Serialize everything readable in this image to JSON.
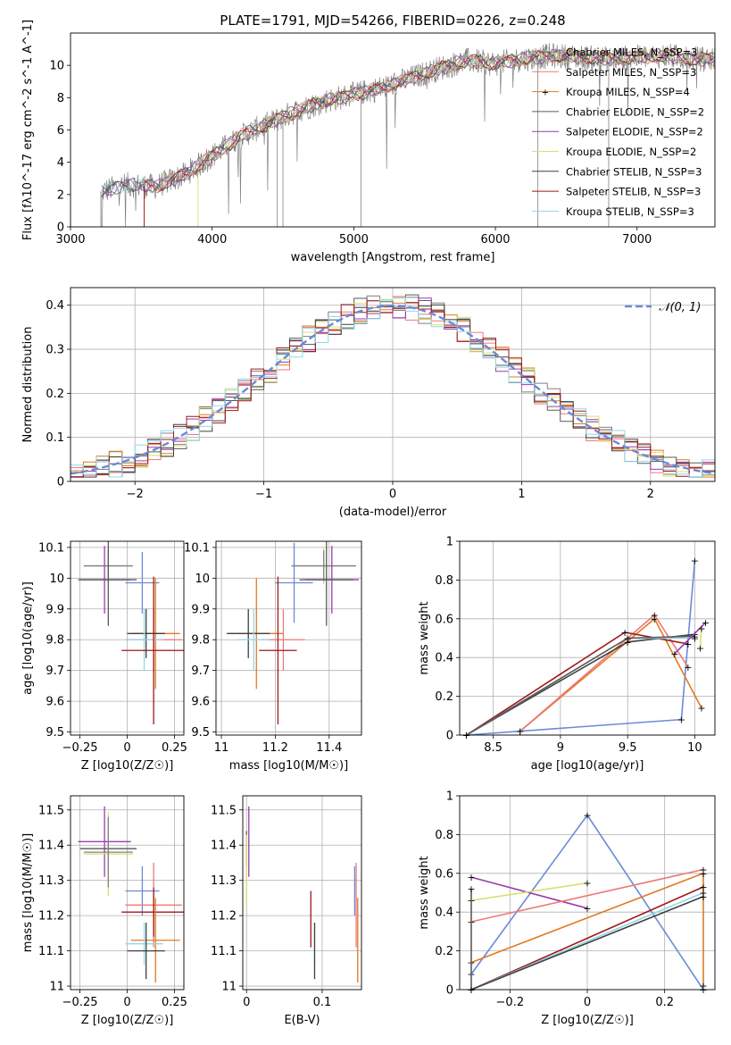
{
  "figure": {
    "title": "PLATE=1791, MJD=54266, FIBERID=0226, z=0.248"
  },
  "legend_colors": [
    "#808080",
    "#f07878",
    "#e07b22",
    "#5a5a5a",
    "#9a3cb0",
    "#d8e070",
    "#404040",
    "#a01818",
    "#90d8e8"
  ],
  "panel_a_legend_lines": [
    "#808080",
    "#f07878",
    "#e07b22",
    "#5a5a5a",
    "#9a3cb0",
    "#d8e070",
    "#404040",
    "#a01818",
    "#90d8e8"
  ],
  "chart_data": [
    {
      "id": "spectrum",
      "type": "line",
      "xlabel": "wavelength [Angstrom, rest frame]",
      "ylabel": "Flux [fλ10^-17 erg cm^-2 s^-1 A^-1]",
      "xlim": [
        3000,
        7550
      ],
      "ylim": [
        0,
        12
      ],
      "xticks": [
        3000,
        4000,
        5000,
        6000,
        7000
      ],
      "yticks": [
        0,
        2,
        4,
        6,
        8,
        10
      ],
      "grid": false,
      "legend_position": "right",
      "series": [
        {
          "name": "Chabrier MILES, N_SSP=3",
          "color": "#808080"
        },
        {
          "name": "Salpeter MILES, N_SSP=3",
          "color": "#f07878"
        },
        {
          "name": "Kroupa MILES, N_SSP=4",
          "color": "#e07b22"
        },
        {
          "name": "Chabrier ELODIE, N_SSP=2",
          "color": "#5a5a5a"
        },
        {
          "name": "Salpeter ELODIE, N_SSP=2",
          "color": "#9a3cb0"
        },
        {
          "name": "Kroupa ELODIE, N_SSP=2",
          "color": "#d8e070"
        },
        {
          "name": "Chabrier STELIB, N_SSP=3",
          "color": "#404040"
        },
        {
          "name": "Salpeter STELIB, N_SSP=3",
          "color": "#a01818"
        },
        {
          "name": "Kroupa STELIB, N_SSP=3",
          "color": "#90d8e8"
        }
      ],
      "data_envelope": {
        "x": [
          3220,
          3400,
          3600,
          3800,
          4000,
          4200,
          4400,
          4600,
          4800,
          5000,
          5200,
          5400,
          5600,
          5800,
          6000,
          6200,
          6400,
          6600,
          6800,
          7000,
          7200,
          7400
        ],
        "y": [
          2.2,
          2.6,
          2.5,
          3.2,
          4.4,
          5.6,
          6.4,
          7.2,
          7.8,
          8.2,
          8.6,
          9.2,
          9.8,
          10.3,
          10.1,
          10.4,
          10.6,
          10.5,
          10.4,
          10.5,
          10.6,
          10.4
        ]
      }
    },
    {
      "id": "residuals",
      "type": "histogram",
      "xlabel": "(data-model)/error",
      "ylabel": "Normed distribution",
      "xlim": [
        -2.5,
        2.5
      ],
      "ylim": [
        0,
        0.44
      ],
      "xticks": [
        -2,
        -1,
        0,
        1,
        2
      ],
      "yticks": [
        0.0,
        0.1,
        0.2,
        0.3,
        0.4
      ],
      "grid": true,
      "legend_position": "top-right",
      "legend_label": "𝒩(0, 1)",
      "reference_curve": "gaussian mean 0 sigma 1"
    },
    {
      "id": "age_vs_Z",
      "type": "errorbar",
      "xlabel": "Z [log10(Z/Z☉)]",
      "ylabel": "age [log10(age/yr)]",
      "xlim": [
        -0.3,
        0.3
      ],
      "ylim": [
        9.49,
        10.12
      ],
      "xticks": [
        -0.25,
        0.0,
        0.25
      ],
      "yticks": [
        9.5,
        9.6,
        9.7,
        9.8,
        9.9,
        10.0,
        10.1
      ],
      "grid": true,
      "points": [
        {
          "color": "#d8e070",
          "x": -0.1,
          "xerr": 0.13,
          "y": 10.04,
          "yerr": 0.06
        },
        {
          "color": "#808080",
          "x": -0.1,
          "xerr": 0.13,
          "y": 10.04,
          "yerr": 0.05
        },
        {
          "color": "#9a3cb0",
          "x": -0.12,
          "xerr": 0.14,
          "y": 9.995,
          "yerr": 0.11
        },
        {
          "color": "#5a5a5a",
          "x": -0.1,
          "xerr": 0.15,
          "y": 9.995,
          "yerr": 0.15
        },
        {
          "color": "#6a8ad8",
          "x": 0.08,
          "xerr": 0.09,
          "y": 9.985,
          "yerr": 0.1
        },
        {
          "color": "#f07878",
          "x": 0.14,
          "xerr": 0.15,
          "y": 9.8,
          "yerr": 0.1
        },
        {
          "color": "#e07b22",
          "x": 0.15,
          "xerr": 0.13,
          "y": 9.82,
          "yerr": 0.18
        },
        {
          "color": "#404040",
          "x": 0.1,
          "xerr": 0.1,
          "y": 9.82,
          "yerr": 0.08
        },
        {
          "color": "#90d8e8",
          "x": 0.09,
          "xerr": 0.1,
          "y": 9.8,
          "yerr": 0.1
        },
        {
          "color": "#a01818",
          "x": 0.14,
          "xerr": 0.17,
          "y": 9.765,
          "yerr": 0.24
        }
      ]
    },
    {
      "id": "age_vs_mass",
      "type": "errorbar",
      "xlabel": "mass [log10(M/M☉)]",
      "ylabel": "",
      "xlim": [
        10.98,
        11.52
      ],
      "ylim": [
        9.49,
        10.12
      ],
      "xticks": [
        11.0,
        11.2,
        11.4
      ],
      "yticks": [
        9.5,
        9.6,
        9.7,
        9.8,
        9.9,
        10.0,
        10.1
      ],
      "grid": true,
      "points": [
        {
          "color": "#d8e070",
          "x": 11.38,
          "xerr": 0.12,
          "y": 10.04,
          "yerr": 0.06
        },
        {
          "color": "#808080",
          "x": 11.38,
          "xerr": 0.12,
          "y": 10.04,
          "yerr": 0.05
        },
        {
          "color": "#9a3cb0",
          "x": 11.41,
          "xerr": 0.1,
          "y": 9.995,
          "yerr": 0.11
        },
        {
          "color": "#5a5a5a",
          "x": 11.39,
          "xerr": 0.1,
          "y": 9.995,
          "yerr": 0.15
        },
        {
          "color": "#6a8ad8",
          "x": 11.27,
          "xerr": 0.07,
          "y": 9.985,
          "yerr": 0.13
        },
        {
          "color": "#f07878",
          "x": 11.23,
          "xerr": 0.08,
          "y": 9.8,
          "yerr": 0.1
        },
        {
          "color": "#e07b22",
          "x": 11.13,
          "xerr": 0.1,
          "y": 9.82,
          "yerr": 0.18
        },
        {
          "color": "#404040",
          "x": 11.1,
          "xerr": 0.08,
          "y": 9.82,
          "yerr": 0.08
        },
        {
          "color": "#90d8e8",
          "x": 11.12,
          "xerr": 0.06,
          "y": 9.8,
          "yerr": 0.1
        },
        {
          "color": "#a01818",
          "x": 11.21,
          "xerr": 0.07,
          "y": 9.765,
          "yerr": 0.24
        }
      ]
    },
    {
      "id": "weight_vs_age",
      "type": "line",
      "xlabel": "age [log10(age/yr)]",
      "ylabel": "mass weight",
      "xlim": [
        8.25,
        10.15
      ],
      "ylim": [
        0,
        1.0
      ],
      "xticks": [
        8.5,
        9.0,
        9.5,
        10.0
      ],
      "yticks": [
        0.0,
        0.2,
        0.4,
        0.6,
        0.8,
        1.0
      ],
      "grid": true,
      "series": [
        {
          "color": "#6a8ad8",
          "points": [
            [
              8.3,
              0.0
            ],
            [
              9.9,
              0.08
            ],
            [
              10.0,
              0.9
            ]
          ]
        },
        {
          "color": "#e07b22",
          "points": [
            [
              8.7,
              0.02
            ],
            [
              9.7,
              0.6
            ],
            [
              10.05,
              0.14
            ]
          ]
        },
        {
          "color": "#f07878",
          "points": [
            [
              8.7,
              0.02
            ],
            [
              9.7,
              0.62
            ],
            [
              9.95,
              0.35
            ]
          ]
        },
        {
          "color": "#a01818",
          "points": [
            [
              8.3,
              0.0
            ],
            [
              9.48,
              0.53
            ],
            [
              9.95,
              0.47
            ]
          ]
        },
        {
          "color": "#404040",
          "points": [
            [
              8.3,
              0.0
            ],
            [
              9.5,
              0.48
            ],
            [
              10.0,
              0.52
            ]
          ]
        },
        {
          "color": "#90d8e8",
          "points": [
            [
              8.3,
              0.0
            ],
            [
              9.5,
              0.5
            ],
            [
              10.0,
              0.5
            ]
          ]
        },
        {
          "color": "#5a5a5a",
          "points": [
            [
              8.3,
              0.0
            ],
            [
              9.5,
              0.5
            ],
            [
              10.0,
              0.51
            ]
          ]
        },
        {
          "color": "#9a3cb0",
          "points": [
            [
              9.85,
              0.42
            ],
            [
              10.08,
              0.58
            ]
          ]
        },
        {
          "color": "#d8e070",
          "points": [
            [
              10.04,
              0.45
            ],
            [
              10.05,
              0.55
            ]
          ]
        }
      ]
    },
    {
      "id": "mass_vs_Z",
      "type": "errorbar",
      "xlabel": "Z [log10(Z/Z☉)]",
      "ylabel": "mass [log10(M/M☉)]",
      "xlim": [
        -0.3,
        0.3
      ],
      "ylim": [
        10.99,
        11.54
      ],
      "xticks": [
        -0.25,
        0.0,
        0.25
      ],
      "yticks": [
        11.0,
        11.1,
        11.2,
        11.3,
        11.4,
        11.5
      ],
      "grid": true,
      "points": [
        {
          "color": "#9a3cb0",
          "x": -0.12,
          "xerr": 0.14,
          "y": 11.41,
          "yerr": 0.1
        },
        {
          "color": "#5a5a5a",
          "x": -0.1,
          "xerr": 0.15,
          "y": 11.39,
          "yerr": 0.05
        },
        {
          "color": "#d8e070",
          "x": -0.1,
          "xerr": 0.13,
          "y": 11.375,
          "yerr": 0.12
        },
        {
          "color": "#808080",
          "x": -0.1,
          "xerr": 0.13,
          "y": 11.38,
          "yerr": 0.1
        },
        {
          "color": "#6a8ad8",
          "x": 0.08,
          "xerr": 0.09,
          "y": 11.27,
          "yerr": 0.07
        },
        {
          "color": "#f07878",
          "x": 0.14,
          "xerr": 0.15,
          "y": 11.23,
          "yerr": 0.12
        },
        {
          "color": "#a01818",
          "x": 0.14,
          "xerr": 0.17,
          "y": 11.21,
          "yerr": 0.07
        },
        {
          "color": "#e07b22",
          "x": 0.15,
          "xerr": 0.13,
          "y": 11.13,
          "yerr": 0.12
        },
        {
          "color": "#90d8e8",
          "x": 0.09,
          "xerr": 0.1,
          "y": 11.12,
          "yerr": 0.06
        },
        {
          "color": "#404040",
          "x": 0.1,
          "xerr": 0.1,
          "y": 11.1,
          "yerr": 0.08
        }
      ]
    },
    {
      "id": "mass_vs_EBV",
      "type": "errorbar",
      "xlabel": "E(B-V)",
      "ylabel": "",
      "xlim": [
        -0.005,
        0.152
      ],
      "ylim": [
        10.99,
        11.54
      ],
      "xticks": [
        0.0,
        0.1
      ],
      "yticks": [
        11.0,
        11.1,
        11.2,
        11.3,
        11.4,
        11.5
      ],
      "grid": true,
      "points": [
        {
          "color": "#9a3cb0",
          "x": 0.003,
          "y": 11.41,
          "yerr": 0.1
        },
        {
          "color": "#5a5a5a",
          "x": 0.0,
          "y": 11.39,
          "yerr": 0.05
        },
        {
          "color": "#d8e070",
          "x": 0.0,
          "y": 11.33,
          "yerr": 0.1
        },
        {
          "color": "#6a8ad8",
          "x": 0.143,
          "y": 11.27,
          "yerr": 0.07
        },
        {
          "color": "#f07878",
          "x": 0.145,
          "y": 11.23,
          "yerr": 0.12
        },
        {
          "color": "#a01818",
          "x": 0.085,
          "y": 11.19,
          "yerr": 0.08
        },
        {
          "color": "#e07b22",
          "x": 0.147,
          "y": 11.13,
          "yerr": 0.12
        },
        {
          "color": "#90d8e8",
          "x": 0.09,
          "y": 11.12,
          "yerr": 0.06
        },
        {
          "color": "#404040",
          "x": 0.09,
          "y": 11.1,
          "yerr": 0.08
        }
      ]
    },
    {
      "id": "weight_vs_Z",
      "type": "line",
      "xlabel": "Z [log10(Z/Z☉)]",
      "ylabel": "mass weight",
      "xlim": [
        -0.33,
        0.33
      ],
      "ylim": [
        0,
        1.0
      ],
      "xticks": [
        -0.2,
        0.0,
        0.2
      ],
      "yticks": [
        0.0,
        0.2,
        0.4,
        0.6,
        0.8,
        1.0
      ],
      "grid": true,
      "series": [
        {
          "color": "#6a8ad8",
          "points": [
            [
              -0.3,
              0.08
            ],
            [
              0.0,
              0.9
            ],
            [
              0.3,
              0.0
            ]
          ]
        },
        {
          "color": "#9a3cb0",
          "points": [
            [
              -0.3,
              0.58
            ],
            [
              0.0,
              0.42
            ]
          ]
        },
        {
          "color": "#d8e070",
          "points": [
            [
              -0.3,
              0.46
            ],
            [
              0.0,
              0.55
            ]
          ]
        },
        {
          "color": "#f07878",
          "points": [
            [
              -0.3,
              0.35
            ],
            [
              0.3,
              0.62
            ]
          ]
        },
        {
          "color": "#e07b22",
          "points": [
            [
              -0.3,
              0.14
            ],
            [
              0.3,
              0.6
            ],
            [
              0.3,
              0.02
            ]
          ]
        },
        {
          "color": "#a01818",
          "points": [
            [
              -0.3,
              0.0
            ],
            [
              0.3,
              0.53
            ]
          ]
        },
        {
          "color": "#90d8e8",
          "points": [
            [
              -0.3,
              0.0
            ],
            [
              0.3,
              0.5
            ]
          ]
        },
        {
          "color": "#404040",
          "points": [
            [
              -0.3,
              0.0
            ],
            [
              0.3,
              0.48
            ]
          ]
        },
        {
          "color": "#5a5a5a",
          "points": [
            [
              -0.3,
              0.52
            ],
            [
              -0.3,
              0.0
            ]
          ]
        }
      ]
    }
  ]
}
